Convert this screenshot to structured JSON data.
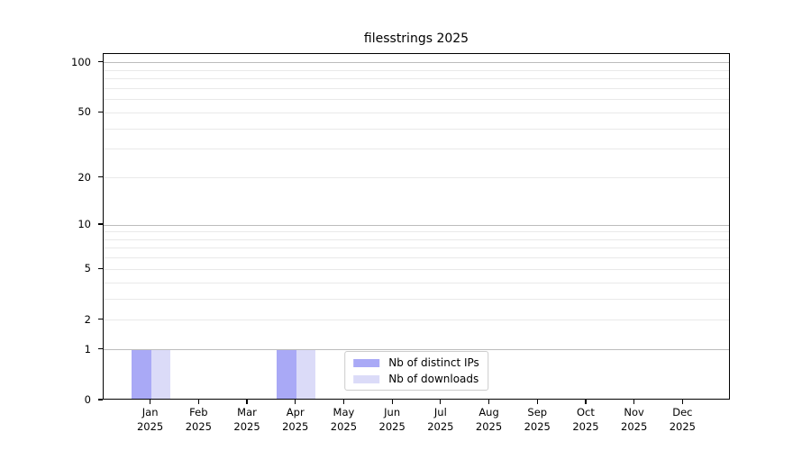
{
  "chart_data": {
    "type": "bar",
    "title": "filesstrings 2025",
    "year_label": "2025",
    "categories": [
      "Jan",
      "Feb",
      "Mar",
      "Apr",
      "May",
      "Jun",
      "Jul",
      "Aug",
      "Sep",
      "Oct",
      "Nov",
      "Dec"
    ],
    "series": [
      {
        "name": "Nb of distinct IPs",
        "color": "#a9a9f6",
        "values": [
          1,
          0,
          0,
          1,
          0,
          0,
          0,
          0,
          0,
          0,
          0,
          0
        ]
      },
      {
        "name": "Nb of downloads",
        "color": "#dbdbf8",
        "values": [
          1,
          0,
          0,
          1,
          0,
          0,
          0,
          0,
          0,
          0,
          0,
          0
        ]
      }
    ],
    "y_axis": {
      "scale": "log1p",
      "lim": [
        0,
        113
      ],
      "ticks": [
        0,
        1,
        2,
        5,
        10,
        20,
        50,
        100
      ],
      "major_gridlines": [
        1,
        10,
        100
      ],
      "minor_gridlines": [
        2,
        3,
        4,
        5,
        6,
        7,
        8,
        9,
        20,
        30,
        40,
        50,
        60,
        70,
        80,
        90
      ]
    },
    "x_axis": {
      "lim": [
        -0.98,
        11.98
      ],
      "bar_width": 0.4,
      "group_offset": 0.2
    },
    "legend": {
      "position": "lower center",
      "entries": [
        "Nb of distinct IPs",
        "Nb of downloads"
      ]
    },
    "colors": {
      "major_grid": "#bcbcbc",
      "minor_grid": "#e9e9e9",
      "spine": "#000000",
      "background": "#ffffff"
    }
  }
}
